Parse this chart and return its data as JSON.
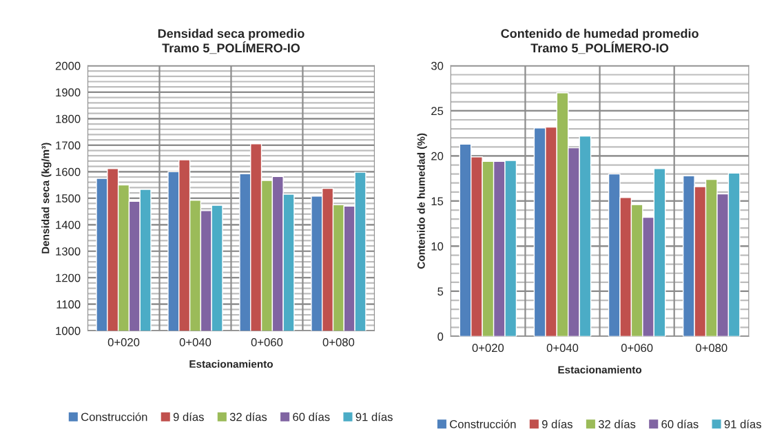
{
  "chart_data": [
    {
      "type": "bar",
      "title": "Densidad seca promedio\nTramo 5_POLÍMERO-IO",
      "xlabel": "Estacionamiento",
      "ylabel": "Densidad seca (kg/m³)",
      "categories": [
        "0+020",
        "0+040",
        "0+060",
        "0+080"
      ],
      "series": [
        {
          "name": "Construcción",
          "color": "#4f81bd",
          "values": [
            1575,
            1600,
            1592,
            1508
          ]
        },
        {
          "name": "9 días",
          "color": "#c0504d",
          "values": [
            1612,
            1645,
            1705,
            1537
          ]
        },
        {
          "name": "32 días",
          "color": "#9bbb59",
          "values": [
            1550,
            1492,
            1567,
            1475
          ]
        },
        {
          "name": "60 días",
          "color": "#8064a2",
          "values": [
            1488,
            1453,
            1582,
            1470
          ]
        },
        {
          "name": "91 días",
          "color": "#4bacc6",
          "values": [
            1533,
            1473,
            1515,
            1598
          ]
        }
      ],
      "ylim": [
        1000,
        2000
      ],
      "yticks": [
        1000,
        1100,
        1200,
        1300,
        1400,
        1500,
        1600,
        1700,
        1800,
        1900,
        2000
      ],
      "grid": true,
      "legend": "bottom"
    },
    {
      "type": "bar",
      "title": "Contenido de humedad promedio\nTramo 5_POLÍMERO-IO",
      "xlabel": "Estacionamiento",
      "ylabel": "Contenido de humedad (%)",
      "categories": [
        "0+020",
        "0+040",
        "0+060",
        "0+080"
      ],
      "series": [
        {
          "name": "Construcción",
          "color": "#4f81bd",
          "values": [
            21.3,
            23.1,
            18.0,
            17.8
          ]
        },
        {
          "name": "9 días",
          "color": "#c0504d",
          "values": [
            19.9,
            23.2,
            15.4,
            16.6
          ]
        },
        {
          "name": "32 días",
          "color": "#9bbb59",
          "values": [
            19.4,
            27.0,
            14.6,
            17.4
          ]
        },
        {
          "name": "60 días",
          "color": "#8064a2",
          "values": [
            19.4,
            20.9,
            13.2,
            15.8
          ]
        },
        {
          "name": "91 días",
          "color": "#4bacc6",
          "values": [
            19.5,
            22.2,
            18.6,
            18.1
          ]
        }
      ],
      "ylim": [
        0,
        30
      ],
      "yticks": [
        0,
        5,
        10,
        15,
        20,
        25,
        30
      ],
      "grid": true,
      "legend": "bottom"
    }
  ]
}
